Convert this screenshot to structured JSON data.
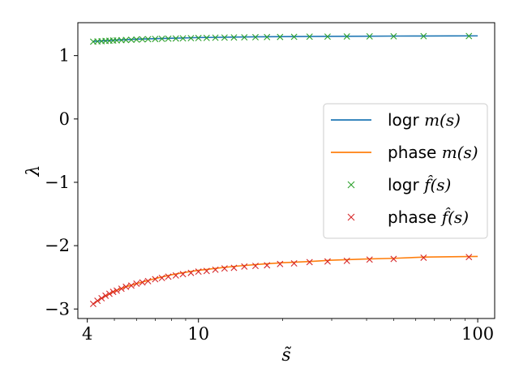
{
  "chart_data": {
    "type": "line",
    "xlabel": "s̃",
    "ylabel": "λ",
    "xscale": "log",
    "xlim": [
      3.7,
      115
    ],
    "ylim": [
      -3.15,
      1.52
    ],
    "xticks": [
      {
        "value": 4,
        "label": "4"
      },
      {
        "value": 10,
        "label": "10"
      },
      {
        "value": 100,
        "label": "100"
      }
    ],
    "yticks": [
      {
        "value": 1,
        "label": "1"
      },
      {
        "value": 0,
        "label": "0"
      },
      {
        "value": -1,
        "label": "−1"
      },
      {
        "value": -2,
        "label": "−2"
      },
      {
        "value": -3,
        "label": "−3"
      }
    ],
    "grid": false,
    "legend_position": "center-right",
    "series": [
      {
        "name": "logr m(s)",
        "kind": "line",
        "color": "#1f77b4",
        "x": [
          4.2,
          5,
          6,
          8,
          10,
          13,
          16,
          20,
          25,
          30,
          40,
          50,
          65,
          80,
          100
        ],
        "y": [
          1.225,
          1.245,
          1.26,
          1.275,
          1.285,
          1.292,
          1.297,
          1.3,
          1.303,
          1.305,
          1.307,
          1.309,
          1.31,
          1.311,
          1.312
        ]
      },
      {
        "name": "phase m(s)",
        "kind": "line",
        "color": "#ff7f0e",
        "x": [
          4.2,
          4.5,
          5,
          5.5,
          6,
          7,
          8,
          9,
          10,
          12,
          14,
          17,
          20,
          25,
          30,
          40,
          50,
          65,
          80,
          100
        ],
        "y": [
          -2.92,
          -2.83,
          -2.72,
          -2.65,
          -2.6,
          -2.52,
          -2.46,
          -2.42,
          -2.39,
          -2.35,
          -2.32,
          -2.29,
          -2.27,
          -2.25,
          -2.23,
          -2.21,
          -2.2,
          -2.18,
          -2.175,
          -2.17
        ]
      },
      {
        "name": "logr f̂(s)",
        "kind": "markers",
        "marker": "x",
        "color": "#2ca02c",
        "x": [
          4.2,
          4.35,
          4.5,
          4.65,
          4.8,
          4.95,
          5.1,
          5.3,
          5.5,
          5.75,
          6.0,
          6.3,
          6.6,
          7.0,
          7.4,
          7.8,
          8.3,
          8.8,
          9.4,
          10.0,
          10.7,
          11.5,
          12.4,
          13.4,
          14.6,
          16.0,
          17.6,
          19.6,
          22.0,
          25.0,
          29.0,
          34.0,
          41.0,
          50.0,
          64.0,
          93.0
        ],
        "y": [
          1.22,
          1.225,
          1.228,
          1.232,
          1.235,
          1.238,
          1.241,
          1.244,
          1.247,
          1.25,
          1.254,
          1.257,
          1.26,
          1.263,
          1.266,
          1.268,
          1.271,
          1.273,
          1.276,
          1.278,
          1.28,
          1.283,
          1.285,
          1.287,
          1.289,
          1.291,
          1.293,
          1.295,
          1.297,
          1.299,
          1.3,
          1.302,
          1.304,
          1.305,
          1.307,
          1.309
        ]
      },
      {
        "name": "phase f̂(s)",
        "kind": "markers",
        "marker": "x",
        "color": "#d62728",
        "x": [
          4.2,
          4.35,
          4.5,
          4.65,
          4.8,
          4.95,
          5.1,
          5.3,
          5.5,
          5.75,
          6.0,
          6.3,
          6.6,
          7.0,
          7.4,
          7.8,
          8.3,
          8.8,
          9.4,
          10.0,
          10.7,
          11.5,
          12.4,
          13.4,
          14.6,
          16.0,
          17.6,
          19.6,
          22.0,
          25.0,
          29.0,
          34.0,
          41.0,
          50.0,
          64.0,
          93.0
        ],
        "y": [
          -2.92,
          -2.87,
          -2.83,
          -2.79,
          -2.76,
          -2.73,
          -2.71,
          -2.68,
          -2.65,
          -2.63,
          -2.6,
          -2.58,
          -2.56,
          -2.53,
          -2.51,
          -2.49,
          -2.47,
          -2.45,
          -2.43,
          -2.41,
          -2.4,
          -2.38,
          -2.36,
          -2.35,
          -2.33,
          -2.32,
          -2.31,
          -2.29,
          -2.28,
          -2.26,
          -2.25,
          -2.24,
          -2.22,
          -2.21,
          -2.19,
          -2.18
        ]
      }
    ],
    "legend": [
      {
        "prefix": "logr",
        "math": "m(s)"
      },
      {
        "prefix": "phase",
        "math": "m(s)"
      },
      {
        "prefix": "logr",
        "math": "f̂(s)"
      },
      {
        "prefix": "phase",
        "math": "f̂(s)"
      }
    ]
  }
}
